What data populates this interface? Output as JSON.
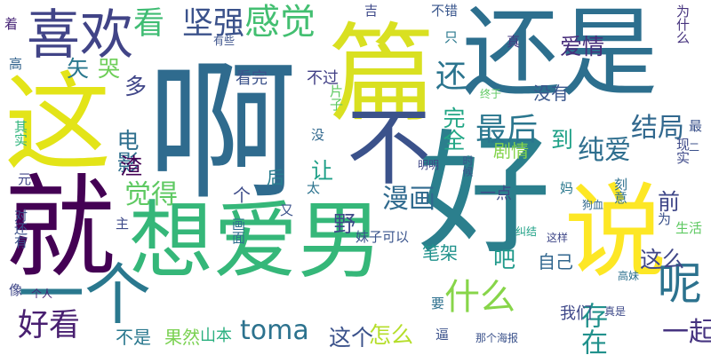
{
  "words": [
    {
      "text": "啊",
      "color": "#2f6b8e",
      "v": false
    },
    {
      "text": "好",
      "color": "#2b7f8d",
      "v": false
    },
    {
      "text": "还是",
      "color": "#2d6f8e",
      "v": false
    },
    {
      "text": "篇",
      "color": "#d9e021",
      "v": false
    },
    {
      "text": "想爱男",
      "color": "#35b779",
      "v": false
    },
    {
      "text": "就",
      "color": "#440154",
      "v": false
    },
    {
      "text": "这",
      "color": "#e3e418",
      "v": false
    },
    {
      "text": "不",
      "color": "#3b528b",
      "v": false
    },
    {
      "text": "说",
      "color": "#fde725",
      "v": false
    },
    {
      "text": "喜欢",
      "color": "#414487",
      "v": false
    },
    {
      "text": "一个",
      "color": "#2a788e",
      "v": false
    },
    {
      "text": "呢",
      "color": "#2c728e",
      "v": false
    },
    {
      "text": "看",
      "color": "#3fbc73",
      "v": false
    },
    {
      "text": "坚强",
      "color": "#3b528b",
      "v": false
    },
    {
      "text": "感觉",
      "color": "#43bf71",
      "v": false
    },
    {
      "text": "最后",
      "color": "#2a768e",
      "v": false
    },
    {
      "text": "结局",
      "color": "#31688e",
      "v": false
    },
    {
      "text": "纯爱",
      "color": "#2e6e8e",
      "v": false
    },
    {
      "text": "觉得",
      "color": "#5ec962",
      "v": false
    },
    {
      "text": "漫画",
      "color": "#306a8e",
      "v": false
    },
    {
      "text": "好看",
      "color": "#481f70",
      "v": false
    },
    {
      "text": "toma",
      "color": "#2c728e",
      "v": false
    },
    {
      "text": "什么",
      "color": "#87d549",
      "v": false
    },
    {
      "text": "存在",
      "color": "#21918c",
      "v": true
    },
    {
      "text": "一起",
      "color": "#463480",
      "v": false
    },
    {
      "text": "这个",
      "color": "#3b528b",
      "v": false
    },
    {
      "text": "怎么",
      "color": "#b5de2b",
      "v": false
    },
    {
      "text": "这么",
      "color": "#404788",
      "v": false
    },
    {
      "text": "完全",
      "color": "#21a685",
      "v": true
    },
    {
      "text": "爱情",
      "color": "#472d7b",
      "v": false
    },
    {
      "text": "电影",
      "color": "#2e6f8e",
      "v": true
    },
    {
      "text": "还",
      "color": "#2b748e",
      "v": false
    },
    {
      "text": "哭",
      "color": "#6ece58",
      "v": false
    },
    {
      "text": "矢",
      "color": "#2a788e",
      "v": false
    },
    {
      "text": "多",
      "color": "#404688",
      "v": false
    },
    {
      "text": "渣",
      "color": "#440154",
      "v": false
    },
    {
      "text": "吧",
      "color": "#1f998a",
      "v": false
    },
    {
      "text": "野",
      "color": "#3e4a89",
      "v": false
    },
    {
      "text": "前",
      "color": "#3f4788",
      "v": false
    },
    {
      "text": "让",
      "color": "#1fa088",
      "v": false
    },
    {
      "text": "到",
      "color": "#1fa187",
      "v": false
    },
    {
      "text": "后",
      "color": "#287c8e",
      "v": false
    },
    {
      "text": "个",
      "color": "#3e4c8a",
      "v": false
    },
    {
      "text": "自己",
      "color": "#31668e",
      "v": false
    },
    {
      "text": "笔架",
      "color": "#20928c",
      "v": false
    },
    {
      "text": "剧情",
      "color": "#84d44b",
      "v": false
    },
    {
      "text": "没有",
      "color": "#39568c",
      "v": false
    },
    {
      "text": "不是",
      "color": "#2a788e",
      "v": false
    },
    {
      "text": "果然",
      "color": "#7ad151",
      "v": false
    },
    {
      "text": "山本",
      "color": "#2ab07f",
      "v": false
    },
    {
      "text": "我们",
      "color": "#3f4889",
      "v": false
    },
    {
      "text": "一点",
      "color": "#3e4a89",
      "v": false
    },
    {
      "text": "看完",
      "color": "#3b528b",
      "v": false
    },
    {
      "text": "不过",
      "color": "#424086",
      "v": false
    },
    {
      "text": "片子",
      "color": "#5ec962",
      "v": true
    },
    {
      "text": "妹子可以",
      "color": "#3a548c",
      "v": false
    },
    {
      "text": "现实",
      "color": "#3e4989",
      "v": true
    },
    {
      "text": "刻意",
      "color": "#2d708e",
      "v": true
    },
    {
      "text": "吉",
      "color": "#3e4989",
      "v": false
    },
    {
      "text": "不错",
      "color": "#39568c",
      "v": false
    },
    {
      "text": "为什么",
      "color": "#46337e",
      "v": true
    },
    {
      "text": "只",
      "color": "#2a788e",
      "v": false
    },
    {
      "text": "真",
      "color": "#453882",
      "v": false
    },
    {
      "text": "没",
      "color": "#31688e",
      "v": false
    },
    {
      "text": "有些",
      "color": "#3b528b",
      "v": false
    },
    {
      "text": "着",
      "color": "#482677",
      "v": false
    },
    {
      "text": "高",
      "color": "#33638d",
      "v": false
    },
    {
      "text": "其实",
      "color": "#2fb47c",
      "v": true
    },
    {
      "text": "元",
      "color": "#404688",
      "v": false
    },
    {
      "text": "对还有",
      "color": "#3b528b",
      "v": true
    },
    {
      "text": "主",
      "color": "#3e4a89",
      "v": false
    },
    {
      "text": "像",
      "color": "#3f4788",
      "v": false
    },
    {
      "text": "个人",
      "color": "#482475",
      "v": false
    },
    {
      "text": "画面",
      "color": "#2e6e8e",
      "v": true
    },
    {
      "text": "太",
      "color": "#2c738e",
      "v": false
    },
    {
      "text": "又",
      "color": "#3b528b",
      "v": false
    },
    {
      "text": "要",
      "color": "#2d708e",
      "v": false
    },
    {
      "text": "逼",
      "color": "#3b528b",
      "v": false
    },
    {
      "text": "那个海报",
      "color": "#3b528b",
      "v": false
    },
    {
      "text": "真是",
      "color": "#3e4a89",
      "v": false
    },
    {
      "text": "高妹",
      "color": "#2d708e",
      "v": false
    },
    {
      "text": "生活",
      "color": "#5ec962",
      "v": false
    },
    {
      "text": "为",
      "color": "#3b528b",
      "v": false
    },
    {
      "text": "这样",
      "color": "#3f4788",
      "v": false
    },
    {
      "text": "纠结",
      "color": "#1fa187",
      "v": false
    },
    {
      "text": "狗血",
      "color": "#31688e",
      "v": false
    },
    {
      "text": "妈",
      "color": "#2a788e",
      "v": false
    },
    {
      "text": "时候",
      "color": "#3b528b",
      "v": true
    },
    {
      "text": "明明",
      "color": "#3f4788",
      "v": false
    },
    {
      "text": "终于",
      "color": "#5ec962",
      "v": false
    },
    {
      "text": "最",
      "color": "#3b528b",
      "v": false
    },
    {
      "text": "二",
      "color": "#3b528b",
      "v": false
    }
  ]
}
